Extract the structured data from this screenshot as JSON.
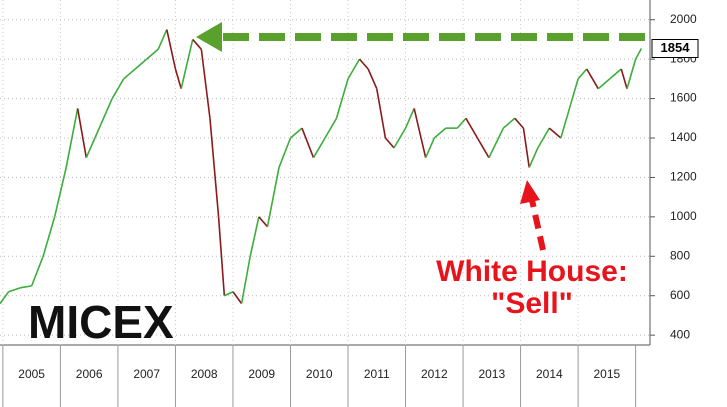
{
  "chart_data": {
    "type": "line",
    "x": [
      2004.95,
      2005.1,
      2005.3,
      2005.5,
      2005.7,
      2005.9,
      2006.1,
      2006.3,
      2006.45,
      2006.6,
      2006.9,
      2007.1,
      2007.3,
      2007.5,
      2007.7,
      2007.85,
      2008.0,
      2008.1,
      2008.3,
      2008.45,
      2008.6,
      2008.75,
      2008.85,
      2009.0,
      2009.15,
      2009.3,
      2009.45,
      2009.6,
      2009.8,
      2010.0,
      2010.2,
      2010.4,
      2010.6,
      2010.8,
      2011.0,
      2011.2,
      2011.35,
      2011.5,
      2011.65,
      2011.8,
      2012.0,
      2012.15,
      2012.35,
      2012.5,
      2012.7,
      2012.9,
      2013.05,
      2013.25,
      2013.45,
      2013.7,
      2013.9,
      2014.05,
      2014.15,
      2014.3,
      2014.5,
      2014.7,
      2014.85,
      2015.0,
      2015.15,
      2015.35,
      2015.55,
      2015.75,
      2015.85,
      2016.0,
      2016.1
    ],
    "series": [
      {
        "name": "MICEX",
        "up_color": "#3cae3c",
        "down_color": "#8b1a1a",
        "values": [
          560,
          620,
          640,
          650,
          800,
          1000,
          1250,
          1550,
          1300,
          1400,
          1600,
          1700,
          1750,
          1800,
          1850,
          1950,
          1750,
          1650,
          1900,
          1850,
          1500,
          1000,
          600,
          620,
          560,
          800,
          1000,
          950,
          1250,
          1400,
          1450,
          1300,
          1400,
          1500,
          1700,
          1800,
          1750,
          1650,
          1400,
          1350,
          1450,
          1550,
          1300,
          1400,
          1450,
          1450,
          1500,
          1400,
          1300,
          1450,
          1500,
          1450,
          1250,
          1350,
          1450,
          1400,
          1550,
          1700,
          1750,
          1650,
          1700,
          1750,
          1650,
          1800,
          1854
        ]
      }
    ],
    "xlim": [
      2004.95,
      2016.25
    ],
    "xticks": [
      {
        "value": 2005.5,
        "label": "2005"
      },
      {
        "value": 2006.5,
        "label": "2006"
      },
      {
        "value": 2007.5,
        "label": "2007"
      },
      {
        "value": 2008.5,
        "label": "2008"
      },
      {
        "value": 2009.5,
        "label": "2009"
      },
      {
        "value": 2010.5,
        "label": "2010"
      },
      {
        "value": 2011.5,
        "label": "2011"
      },
      {
        "value": 2012.5,
        "label": "2012"
      },
      {
        "value": 2013.5,
        "label": "2013"
      },
      {
        "value": 2014.5,
        "label": "2014"
      },
      {
        "value": 2015.5,
        "label": "2015"
      }
    ],
    "ylim": [
      350,
      2100
    ],
    "yticks": [
      400,
      600,
      800,
      1000,
      1200,
      1400,
      1600,
      1800,
      2000
    ],
    "grid": true,
    "annotations": {
      "index_name": "MICEX",
      "callout": [
        "White House:",
        "\"Sell\""
      ]
    }
  }
}
